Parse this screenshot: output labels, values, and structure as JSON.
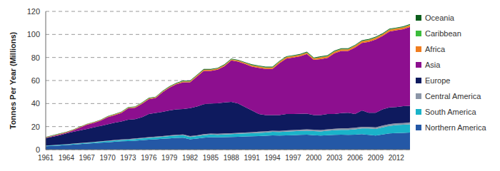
{
  "chart_data": {
    "type": "area",
    "stacked": true,
    "y_label": "Tonnes Per Year (Millions)",
    "x": [
      1961,
      1962,
      1963,
      1964,
      1965,
      1966,
      1967,
      1968,
      1969,
      1970,
      1971,
      1972,
      1973,
      1974,
      1975,
      1976,
      1977,
      1978,
      1979,
      1980,
      1981,
      1982,
      1983,
      1984,
      1985,
      1986,
      1987,
      1988,
      1989,
      1990,
      1991,
      1992,
      1993,
      1994,
      1995,
      1996,
      1997,
      1998,
      1999,
      2000,
      2001,
      2002,
      2003,
      2004,
      2005,
      2006,
      2007,
      2008,
      2009,
      2010,
      2011,
      2012,
      2013,
      2014
    ],
    "xlim": [
      1961,
      2014
    ],
    "xticks": [
      1961,
      1964,
      1967,
      1970,
      1973,
      1976,
      1979,
      1982,
      1985,
      1988,
      1991,
      1994,
      1997,
      2000,
      2003,
      2006,
      2009,
      2012
    ],
    "ylim": [
      0,
      120
    ],
    "yticks": [
      0,
      20,
      40,
      60,
      80,
      100,
      120
    ],
    "grid": true,
    "legend": "right",
    "series": [
      {
        "name": "Northern America",
        "color": "#2458a6",
        "values": [
          3.0,
          3.3,
          3.6,
          4.0,
          4.4,
          4.8,
          5.2,
          5.6,
          6.0,
          6.4,
          6.8,
          7.2,
          7.4,
          7.8,
          8.2,
          8.6,
          9.0,
          9.4,
          9.8,
          10.2,
          10.4,
          9.0,
          9.6,
          10.4,
          10.8,
          10.6,
          10.8,
          11.0,
          11.2,
          11.4,
          11.6,
          11.8,
          12.0,
          12.4,
          12.2,
          12.4,
          12.6,
          12.8,
          13.0,
          12.6,
          12.2,
          12.6,
          12.8,
          13.0,
          12.8,
          13.0,
          13.4,
          12.8,
          12.2,
          13.2,
          14.0,
          14.4,
          14.6,
          14.8
        ]
      },
      {
        "name": "South America",
        "color": "#1ab3c9",
        "values": [
          0.4,
          0.4,
          0.5,
          0.5,
          0.6,
          0.6,
          0.7,
          0.8,
          0.9,
          1.0,
          1.1,
          1.2,
          1.3,
          1.4,
          1.5,
          1.6,
          1.7,
          1.8,
          1.9,
          2.0,
          2.1,
          2.0,
          2.1,
          2.2,
          2.3,
          2.3,
          2.4,
          2.4,
          2.5,
          2.6,
          2.7,
          2.8,
          2.9,
          3.0,
          3.1,
          3.2,
          3.3,
          3.4,
          3.4,
          3.5,
          3.6,
          3.8,
          4.0,
          4.2,
          4.4,
          4.6,
          5.0,
          5.6,
          5.8,
          6.2,
          6.6,
          7.0,
          7.0,
          7.2
        ]
      },
      {
        "name": "Central America",
        "color": "#8c96a8",
        "values": [
          0.2,
          0.2,
          0.2,
          0.2,
          0.3,
          0.3,
          0.3,
          0.3,
          0.3,
          0.4,
          0.4,
          0.4,
          0.5,
          0.5,
          0.5,
          0.6,
          0.6,
          0.6,
          0.7,
          0.7,
          0.7,
          0.7,
          0.7,
          0.8,
          0.8,
          0.8,
          0.8,
          0.9,
          0.9,
          0.9,
          0.9,
          1.0,
          1.0,
          1.0,
          1.0,
          1.1,
          1.1,
          1.1,
          1.2,
          1.2,
          1.2,
          1.2,
          1.3,
          1.3,
          1.3,
          1.4,
          1.4,
          1.4,
          1.4,
          1.5,
          1.5,
          1.5,
          1.5,
          1.6
        ]
      },
      {
        "name": "Europe",
        "color": "#0e1a5e",
        "values": [
          6.4,
          7.2,
          8.0,
          9.3,
          10.2,
          11.0,
          11.8,
          12.6,
          13.4,
          14.2,
          15.0,
          15.6,
          16.8,
          16.8,
          18.0,
          20.2,
          20.6,
          21.0,
          21.6,
          22.0,
          22.0,
          24.3,
          25.0,
          26.0,
          26.1,
          26.5,
          27.0,
          27.2,
          25.4,
          22.1,
          18.8,
          15.4,
          14.1,
          13.6,
          13.7,
          14.3,
          14.0,
          13.8,
          13.6,
          12.7,
          13.0,
          13.4,
          12.9,
          13.2,
          13.5,
          12.0,
          14.2,
          12.2,
          12.6,
          14.1,
          14.5,
          14.1,
          14.6,
          14.4
        ]
      },
      {
        "name": "Asia",
        "color": "#8d0f8f",
        "values": [
          0.2,
          0.6,
          0.9,
          0.7,
          1.2,
          2.5,
          3.7,
          3.9,
          4.6,
          6.2,
          6.5,
          7.4,
          9.8,
          9.8,
          11.6,
          12.8,
          12.9,
          17.0,
          19.8,
          21.9,
          23.2,
          22.4,
          26.0,
          29.0,
          28.4,
          29.2,
          31.4,
          35.9,
          36.4,
          37.4,
          38.0,
          40.0,
          40.0,
          40.0,
          45.0,
          48.0,
          49.0,
          49.9,
          51.8,
          48.0,
          48.6,
          48.6,
          52.6,
          53.9,
          53.6,
          57.6,
          58.6,
          61.6,
          63.6,
          63.6,
          66.0,
          66.6,
          66.9,
          68.6
        ]
      },
      {
        "name": "Africa",
        "color": "#f07d1f",
        "values": [
          0.4,
          0.4,
          0.4,
          0.4,
          0.4,
          0.4,
          0.4,
          0.4,
          0.4,
          0.4,
          0.6,
          0.6,
          0.6,
          0.6,
          0.6,
          0.6,
          0.6,
          0.6,
          0.6,
          0.6,
          0.9,
          0.9,
          0.9,
          0.9,
          0.9,
          0.9,
          0.9,
          0.9,
          0.9,
          0.9,
          1.2,
          1.2,
          1.2,
          1.2,
          1.2,
          1.2,
          1.2,
          1.2,
          1.2,
          1.2,
          1.5,
          1.5,
          1.5,
          1.5,
          1.5,
          1.5,
          1.5,
          1.5,
          1.5,
          1.5,
          1.5,
          1.5,
          1.5,
          1.5
        ]
      },
      {
        "name": "Caribbean",
        "color": "#3cbc3c",
        "values": [
          0.1,
          0.1,
          0.1,
          0.1,
          0.1,
          0.1,
          0.1,
          0.1,
          0.1,
          0.1,
          0.2,
          0.2,
          0.2,
          0.2,
          0.2,
          0.2,
          0.2,
          0.2,
          0.2,
          0.2,
          0.2,
          0.2,
          0.2,
          0.2,
          0.2,
          0.2,
          0.2,
          0.2,
          0.2,
          0.2,
          0.3,
          0.3,
          0.3,
          0.3,
          0.3,
          0.3,
          0.3,
          0.3,
          0.3,
          0.3,
          0.3,
          0.3,
          0.3,
          0.3,
          0.3,
          0.3,
          0.3,
          0.3,
          0.3,
          0.3,
          0.3,
          0.3,
          0.3,
          0.3
        ]
      },
      {
        "name": "Oceania",
        "color": "#0c5e1c",
        "values": [
          0.3,
          0.3,
          0.3,
          0.3,
          0.3,
          0.3,
          0.3,
          0.3,
          0.3,
          0.3,
          0.4,
          0.4,
          0.4,
          0.4,
          0.4,
          0.4,
          0.4,
          0.4,
          0.4,
          0.4,
          0.5,
          0.5,
          0.5,
          0.5,
          0.5,
          0.5,
          0.5,
          0.5,
          0.5,
          0.5,
          0.5,
          0.5,
          0.5,
          0.5,
          0.5,
          0.5,
          0.5,
          0.5,
          0.5,
          0.5,
          0.6,
          0.6,
          0.6,
          0.6,
          0.6,
          0.6,
          0.6,
          0.6,
          0.6,
          0.6,
          0.6,
          0.6,
          0.6,
          0.6
        ]
      }
    ]
  }
}
